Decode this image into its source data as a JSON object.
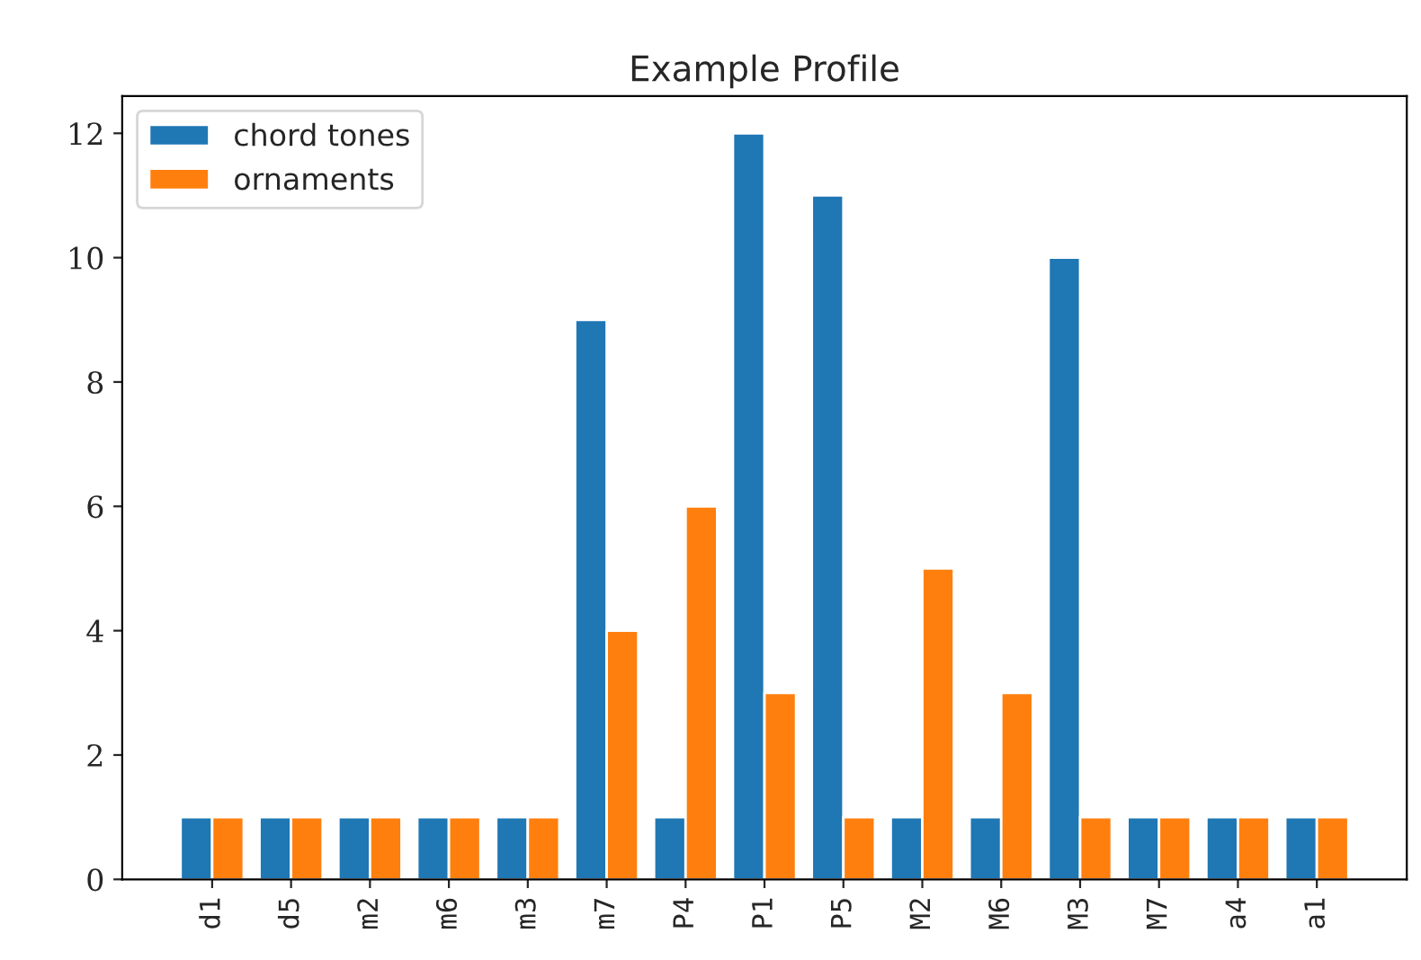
{
  "chart_data": {
    "type": "bar",
    "title": "Example Profile",
    "categories": [
      "d1",
      "d5",
      "m2",
      "m6",
      "m3",
      "m7",
      "P4",
      "P1",
      "P5",
      "M2",
      "M6",
      "M3",
      "M7",
      "a4",
      "a1"
    ],
    "series": [
      {
        "name": "chord tones",
        "color": "#1f77b4",
        "values": [
          1,
          1,
          1,
          1,
          1,
          9,
          1,
          12,
          11,
          1,
          1,
          10,
          1,
          1,
          1
        ]
      },
      {
        "name": "ornaments",
        "color": "#ff7f0e",
        "values": [
          1,
          1,
          1,
          1,
          1,
          4,
          6,
          3,
          1,
          5,
          3,
          1,
          1,
          1,
          1
        ]
      }
    ],
    "ylim": [
      0,
      12.6
    ],
    "yticks": [
      0,
      2,
      4,
      6,
      8,
      10,
      12
    ],
    "grid": false,
    "legend": "top left"
  }
}
